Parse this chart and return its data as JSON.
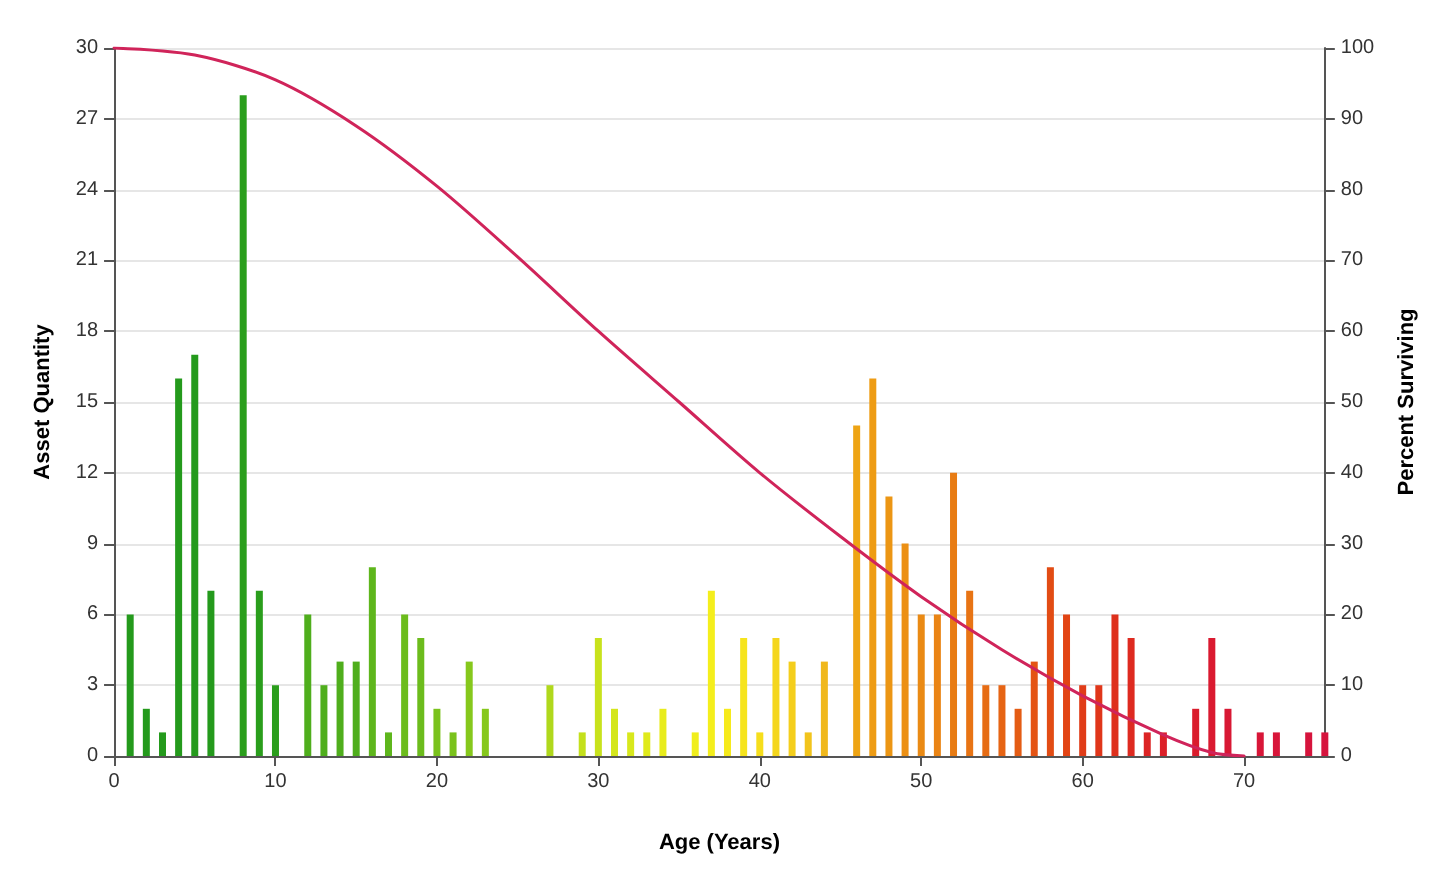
{
  "chart_data": {
    "type": "bar",
    "xlabel": "Age (Years)",
    "ylabel": "Asset Quantity",
    "y2label": "Percent Surviving",
    "xlim": [
      0,
      75
    ],
    "xticks": [
      0,
      10,
      20,
      30,
      40,
      50,
      60,
      70
    ],
    "ylim": [
      0,
      30
    ],
    "yticks": [
      0,
      3,
      6,
      9,
      12,
      15,
      18,
      21,
      24,
      27,
      30
    ],
    "y2lim": [
      0,
      100
    ],
    "y2ticks": [
      0,
      10,
      20,
      30,
      40,
      50,
      60,
      70,
      80,
      90,
      100
    ],
    "grid": "y",
    "series": [
      {
        "x": [
          1,
          2,
          3,
          4,
          5,
          6,
          8,
          9,
          10,
          12,
          13,
          14,
          15,
          16,
          17,
          18,
          19,
          20,
          21,
          22,
          23,
          27,
          29,
          30,
          31,
          32,
          33,
          34,
          36,
          37,
          38,
          39,
          40,
          41,
          42,
          43,
          44,
          46,
          47,
          48,
          49,
          50,
          51,
          52,
          53,
          54,
          55,
          56,
          57,
          58,
          59,
          60,
          61,
          62,
          63,
          64,
          65,
          67,
          68,
          69,
          71,
          72,
          74,
          75
        ],
        "values": [
          6,
          2,
          1,
          16,
          17,
          7,
          28,
          7,
          3,
          6,
          3,
          4,
          4,
          8,
          1,
          6,
          5,
          2,
          1,
          4,
          2,
          3,
          1,
          5,
          2,
          1,
          1,
          2,
          1,
          7,
          2,
          5,
          1,
          5,
          4,
          1,
          4,
          14,
          16,
          11,
          9,
          6,
          6,
          12,
          7,
          3,
          3,
          2,
          4,
          8,
          6,
          3,
          3,
          6,
          5,
          1,
          1,
          2,
          5,
          2,
          1,
          1,
          1,
          1
        ],
        "colors": [
          "#249a1c",
          "#249a1c",
          "#249a1c",
          "#249a1c",
          "#249a1c",
          "#249a1c",
          "#2a9e1c",
          "#2a9e1c",
          "#2a9e1c",
          "#4fae1c",
          "#4fae1c",
          "#4fae1c",
          "#4fae1c",
          "#5eb61c",
          "#5eb61c",
          "#6cbc1c",
          "#6cbc1c",
          "#7ac21c",
          "#7ac21c",
          "#86c81c",
          "#86c81c",
          "#b0d81c",
          "#c4e01c",
          "#c8e21c",
          "#d4e61c",
          "#d8e81c",
          "#e0ea1c",
          "#e8ec1c",
          "#f0ee1c",
          "#f4ee1c",
          "#f6ea1c",
          "#f6e41c",
          "#f6de1c",
          "#f4d61c",
          "#f4ce1c",
          "#f2c41c",
          "#f0b81c",
          "#eea414",
          "#ee9c14",
          "#ec9614",
          "#ec9014",
          "#ea8a14",
          "#ea8414",
          "#e87c14",
          "#e87414",
          "#e66c14",
          "#e66414",
          "#e45c14",
          "#e45414",
          "#e24c14",
          "#e24414",
          "#e03c18",
          "#e0361a",
          "#de301c",
          "#de2a20",
          "#dc2424",
          "#dc2028",
          "#da1c2c",
          "#da1a30",
          "#d81834",
          "#d81638",
          "#d8163a",
          "#d6143c",
          "#d6143e"
        ]
      },
      {
        "type": "line",
        "axis": "y2",
        "color": "#d0245a",
        "marker": "none",
        "line_style": "solid",
        "x": [
          0,
          5,
          10,
          15,
          20,
          25,
          30,
          35,
          40,
          45,
          50,
          55,
          60,
          65,
          68,
          70
        ],
        "values": [
          100,
          99,
          95.5,
          89,
          80.5,
          70.5,
          60,
          50,
          40,
          31,
          22.5,
          15,
          8.5,
          3,
          0.5,
          0
        ]
      }
    ]
  }
}
